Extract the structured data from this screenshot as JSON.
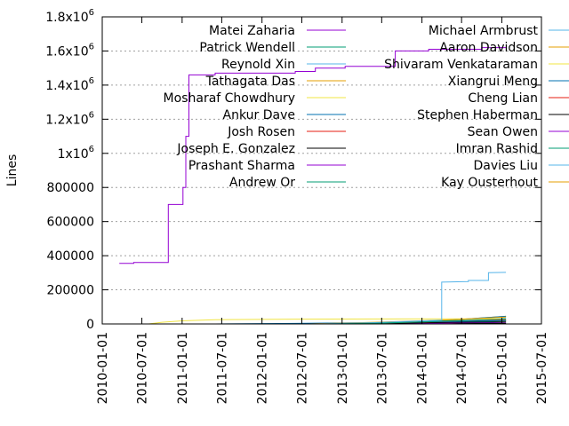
{
  "chart_data": {
    "type": "line",
    "ylabel": "Lines",
    "xlabel": "",
    "title": "",
    "grid": "horizontal-dotted",
    "legend_placement": "top, two columns",
    "xlim": [
      "2010-01-01",
      "2015-07-01"
    ],
    "ylim": [
      0,
      1800000
    ],
    "x_ticks": [
      "2010-01-01",
      "2010-07-01",
      "2011-01-01",
      "2011-07-01",
      "2012-01-01",
      "2012-07-01",
      "2013-01-01",
      "2013-07-01",
      "2014-01-01",
      "2014-07-01",
      "2015-01-01",
      "2015-07-01"
    ],
    "y_ticks": [
      {
        "value": 0,
        "label": "0"
      },
      {
        "value": 200000,
        "label": "200000"
      },
      {
        "value": 400000,
        "label": "400000"
      },
      {
        "value": 600000,
        "label": "600000"
      },
      {
        "value": 800000,
        "label": "800000"
      },
      {
        "value": 1000000,
        "label": "1x10",
        "exp": "6"
      },
      {
        "value": 1200000,
        "label": "1.2x10",
        "exp": "6"
      },
      {
        "value": 1400000,
        "label": "1.4x10",
        "exp": "6"
      },
      {
        "value": 1600000,
        "label": "1.6x10",
        "exp": "6"
      },
      {
        "value": 1800000,
        "label": "1.8x10",
        "exp": "6"
      }
    ],
    "series": [
      {
        "name": "Matei Zaharia",
        "color": "#9400d3",
        "points": [
          [
            "2010-03-20",
            355000
          ],
          [
            "2010-05-25",
            355000
          ],
          [
            "2010-05-25",
            360000
          ],
          [
            "2010-10-30",
            360000
          ],
          [
            "2010-10-30",
            700000
          ],
          [
            "2011-01-05",
            700000
          ],
          [
            "2011-01-05",
            800000
          ],
          [
            "2011-01-18",
            800000
          ],
          [
            "2011-01-18",
            1100000
          ],
          [
            "2011-02-01",
            1100000
          ],
          [
            "2011-02-01",
            1460000
          ],
          [
            "2011-06-01",
            1460000
          ],
          [
            "2011-06-01",
            1470000
          ],
          [
            "2012-06-01",
            1470000
          ],
          [
            "2012-06-01",
            1480000
          ],
          [
            "2012-09-01",
            1480000
          ],
          [
            "2012-09-01",
            1500000
          ],
          [
            "2013-01-15",
            1500000
          ],
          [
            "2013-01-15",
            1510000
          ],
          [
            "2013-09-01",
            1510000
          ],
          [
            "2013-09-01",
            1600000
          ],
          [
            "2014-02-01",
            1600000
          ],
          [
            "2014-02-01",
            1610000
          ],
          [
            "2014-10-01",
            1610000
          ],
          [
            "2014-10-01",
            1620000
          ],
          [
            "2015-01-20",
            1620000
          ]
        ]
      },
      {
        "name": "Patrick Wendell",
        "color": "#009e73",
        "points": [
          [
            "2012-10-01",
            0
          ],
          [
            "2013-06-01",
            4000
          ],
          [
            "2014-01-01",
            12000
          ],
          [
            "2014-06-01",
            20000
          ],
          [
            "2015-01-20",
            28000
          ]
        ]
      },
      {
        "name": "Reynold Xin",
        "color": "#56b4e9",
        "points": [
          [
            "2012-09-01",
            0
          ],
          [
            "2013-06-01",
            8000
          ],
          [
            "2014-01-01",
            18000
          ],
          [
            "2014-04-01",
            22000
          ],
          [
            "2014-04-01",
            245000
          ],
          [
            "2014-08-01",
            248000
          ],
          [
            "2014-08-01",
            255000
          ],
          [
            "2014-11-01",
            255000
          ],
          [
            "2014-11-01",
            300000
          ],
          [
            "2015-01-20",
            302000
          ]
        ]
      },
      {
        "name": "Tathagata Das",
        "color": "#e69f00",
        "points": [
          [
            "2012-08-01",
            0
          ],
          [
            "2013-06-01",
            10000
          ],
          [
            "2014-06-01",
            25000
          ],
          [
            "2015-01-20",
            40000
          ]
        ]
      },
      {
        "name": "Mosharaf Chowdhury",
        "color": "#f0e442",
        "points": [
          [
            "2010-08-01",
            0
          ],
          [
            "2010-10-01",
            10000
          ],
          [
            "2011-01-01",
            18000
          ],
          [
            "2011-06-01",
            25000
          ],
          [
            "2012-06-01",
            28000
          ],
          [
            "2013-06-01",
            29000
          ],
          [
            "2014-06-01",
            30000
          ],
          [
            "2015-01-20",
            30000
          ]
        ]
      },
      {
        "name": "Ankur Dave",
        "color": "#0072b2",
        "points": [
          [
            "2011-06-01",
            0
          ],
          [
            "2012-06-01",
            3000
          ],
          [
            "2013-06-01",
            8000
          ],
          [
            "2014-06-01",
            15000
          ],
          [
            "2015-01-20",
            20000
          ]
        ]
      },
      {
        "name": "Josh Rosen",
        "color": "#e51e10",
        "points": [
          [
            "2012-07-01",
            0
          ],
          [
            "2013-06-01",
            5000
          ],
          [
            "2014-06-01",
            15000
          ],
          [
            "2015-01-20",
            25000
          ]
        ]
      },
      {
        "name": "Joseph E. Gonzalez",
        "color": "#000000",
        "points": [
          [
            "2013-01-01",
            0
          ],
          [
            "2013-10-01",
            5000
          ],
          [
            "2014-06-01",
            10000
          ],
          [
            "2015-01-20",
            12000
          ]
        ]
      },
      {
        "name": "Prashant Sharma",
        "color": "#9400d3",
        "points": [
          [
            "2013-03-01",
            0
          ],
          [
            "2014-06-01",
            6000
          ],
          [
            "2015-01-20",
            10000
          ]
        ]
      },
      {
        "name": "Andrew Or",
        "color": "#009e73",
        "points": [
          [
            "2013-07-01",
            0
          ],
          [
            "2014-06-01",
            10000
          ],
          [
            "2015-01-20",
            18000
          ]
        ]
      },
      {
        "name": "Michael Armbrust",
        "color": "#56b4e9",
        "points": [
          [
            "2014-03-01",
            0
          ],
          [
            "2014-06-01",
            15000
          ],
          [
            "2015-01-20",
            30000
          ]
        ]
      },
      {
        "name": "Aaron Davidson",
        "color": "#e69f00",
        "points": [
          [
            "2013-06-01",
            0
          ],
          [
            "2014-06-01",
            12000
          ],
          [
            "2015-01-20",
            22000
          ]
        ]
      },
      {
        "name": "Shivaram Venkataraman",
        "color": "#f0e442",
        "points": [
          [
            "2012-06-01",
            0
          ],
          [
            "2013-06-01",
            3000
          ],
          [
            "2014-06-01",
            8000
          ],
          [
            "2015-01-20",
            12000
          ]
        ]
      },
      {
        "name": "Xiangrui Meng",
        "color": "#0072b2",
        "points": [
          [
            "2013-08-01",
            0
          ],
          [
            "2014-06-01",
            25000
          ],
          [
            "2015-01-20",
            45000
          ]
        ]
      },
      {
        "name": "Cheng Lian",
        "color": "#e51e10",
        "points": [
          [
            "2014-01-01",
            0
          ],
          [
            "2014-08-01",
            10000
          ],
          [
            "2015-01-20",
            18000
          ]
        ]
      },
      {
        "name": "Stephen Haberman",
        "color": "#000000",
        "points": [
          [
            "2012-12-01",
            0
          ],
          [
            "2013-06-01",
            2000
          ],
          [
            "2015-01-20",
            3000
          ]
        ]
      },
      {
        "name": "Sean Owen",
        "color": "#9400d3",
        "points": [
          [
            "2014-03-01",
            0
          ],
          [
            "2014-10-01",
            6000
          ],
          [
            "2015-01-20",
            10000
          ]
        ]
      },
      {
        "name": "Imran Rashid",
        "color": "#009e73",
        "points": [
          [
            "2013-12-01",
            0
          ],
          [
            "2014-06-01",
            2000
          ],
          [
            "2015-01-20",
            3000
          ]
        ]
      },
      {
        "name": "Davies Liu",
        "color": "#56b4e9",
        "points": [
          [
            "2014-06-01",
            0
          ],
          [
            "2014-10-01",
            20000
          ],
          [
            "2015-01-20",
            35000
          ]
        ]
      },
      {
        "name": "Kay Ousterhout",
        "color": "#e69f00",
        "points": [
          [
            "2013-01-01",
            0
          ],
          [
            "2014-01-01",
            10000
          ],
          [
            "2014-08-01",
            30000
          ],
          [
            "2015-01-20",
            45000
          ]
        ]
      }
    ]
  }
}
